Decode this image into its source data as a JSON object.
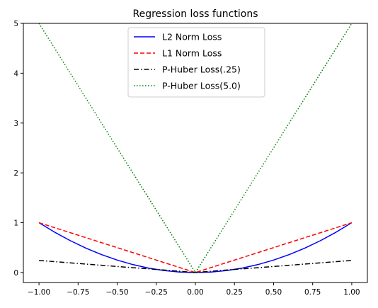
{
  "chart_data": {
    "type": "line",
    "title": "Regression loss functions",
    "xlabel": "",
    "ylabel": "",
    "xlim": [
      -1.1,
      1.1
    ],
    "ylim": [
      -0.2,
      5
    ],
    "xticks": [
      -1.0,
      -0.75,
      -0.5,
      -0.25,
      0.0,
      0.25,
      0.5,
      0.75,
      1.0
    ],
    "xtick_labels": [
      "−1.00",
      "−0.75",
      "−0.50",
      "−0.25",
      "0.00",
      "0.25",
      "0.50",
      "0.75",
      "1.00"
    ],
    "yticks": [
      0,
      1,
      2,
      3,
      4,
      5
    ],
    "ytick_labels": [
      "0",
      "1",
      "2",
      "3",
      "4",
      "5"
    ],
    "grid": false,
    "legend_position": "top-center",
    "series": [
      {
        "name": "L2 Norm Loss",
        "color": "#0000ff",
        "style": "solid",
        "x": [
          -1.0,
          -0.9,
          -0.8,
          -0.7,
          -0.6,
          -0.5,
          -0.4,
          -0.3,
          -0.2,
          -0.1,
          0.0,
          0.1,
          0.2,
          0.3,
          0.4,
          0.5,
          0.6,
          0.7,
          0.8,
          0.9,
          1.0
        ],
        "y": [
          1.0,
          0.81,
          0.64,
          0.49,
          0.36,
          0.25,
          0.16,
          0.09,
          0.04,
          0.01,
          0.0,
          0.01,
          0.04,
          0.09,
          0.16,
          0.25,
          0.36,
          0.49,
          0.64,
          0.81,
          1.0
        ]
      },
      {
        "name": "L1 Norm Loss",
        "color": "#ff0000",
        "style": "dashed",
        "x": [
          -1.0,
          0.0,
          1.0
        ],
        "y": [
          1.0,
          0.0,
          1.0
        ]
      },
      {
        "name": "P-Huber Loss(.25)",
        "color": "#000000",
        "style": "dashdot",
        "x": [
          -1.0,
          -0.8,
          -0.6,
          -0.4,
          -0.2,
          -0.1,
          0.0,
          0.1,
          0.2,
          0.4,
          0.6,
          0.8,
          1.0
        ],
        "y": [
          0.243,
          0.1944,
          0.1455,
          0.0971,
          0.0503,
          0.0268,
          0.0,
          0.0268,
          0.0503,
          0.0971,
          0.1455,
          0.1944,
          0.243
        ]
      },
      {
        "name": "P-Huber Loss(5.0)",
        "color": "#008000",
        "style": "dotted",
        "x": [
          -1.0,
          -0.8,
          -0.6,
          -0.4,
          -0.2,
          -0.1,
          0.0,
          0.1,
          0.2,
          0.4,
          0.6,
          0.8,
          1.0
        ],
        "y": [
          5.0,
          4.0,
          3.0,
          2.0,
          1.0,
          0.5,
          0.0,
          0.5,
          1.0,
          2.0,
          3.0,
          4.0,
          5.0
        ]
      }
    ]
  }
}
